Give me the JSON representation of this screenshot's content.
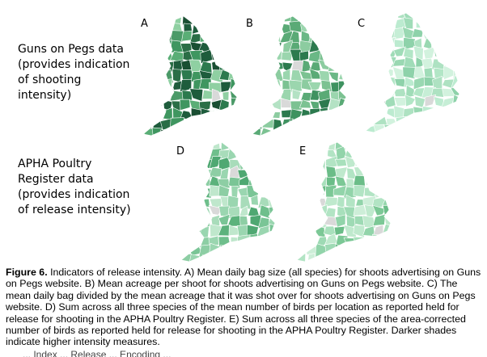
{
  "row_labels": {
    "guns_on_pegs": [
      "Guns on Pegs data",
      "(provides indication",
      "of shooting",
      "intensity)"
    ],
    "apha": [
      "APHA Poultry",
      "Register data",
      "(provides indication",
      "of release intensity)"
    ]
  },
  "panels": [
    {
      "letter": "A",
      "palette": [
        "#1e5c3c",
        "#2c7a4e",
        "#3f9660",
        "#5aae76",
        "#8fd0a2",
        "#2a6e46",
        "#4b9a68",
        "#1a4f33"
      ]
    },
    {
      "letter": "B",
      "palette": [
        "#5aaa76",
        "#7cc292",
        "#9bd6ae",
        "#3f9260",
        "#6ab886",
        "#b4e2c4",
        "#2c7a4e",
        "#8ccca0"
      ]
    },
    {
      "letter": "C",
      "palette": [
        "#b2e6c6",
        "#a0dcb8",
        "#c6eed6",
        "#8ed2aa",
        "#bcebd0",
        "#9ad8b2",
        "#aee2c2",
        "#d2f2de"
      ]
    },
    {
      "letter": "D",
      "palette": [
        "#6fbf8c",
        "#8dcea4",
        "#a8dcba",
        "#4fa872",
        "#bfe7cc",
        "#7ac596",
        "#9ad6b0",
        "#5cb27c"
      ]
    },
    {
      "letter": "E",
      "palette": [
        "#a8e0bc",
        "#bfe9cd",
        "#92d4aa",
        "#7cc896",
        "#cdeed8",
        "#b2e4c4",
        "#6bbd88",
        "#9edaB4"
      ]
    }
  ],
  "caption": {
    "prefix": "Figure 6.",
    "text": " Indicators of release intensity. A) Mean daily bag size (all species) for shoots advertising on Guns on Pegs website. B) Mean acreage per shoot for shoots advertising on Guns on Pegs website. C) The mean daily bag divided by the mean acreage that it was shot over for shoots advertising on Guns on Pegs website. D) Sum across all three species of the mean number of birds per location as reported held for release for shooting in the APHA Poultry Register. E) Sum across all three species of the area-corrected number of birds as reported held for release for shooting in the APHA Poultry Register. Darker shades indicate higher intensity measures."
  },
  "cut_text": "... Index ... Release ... Encoding ..."
}
